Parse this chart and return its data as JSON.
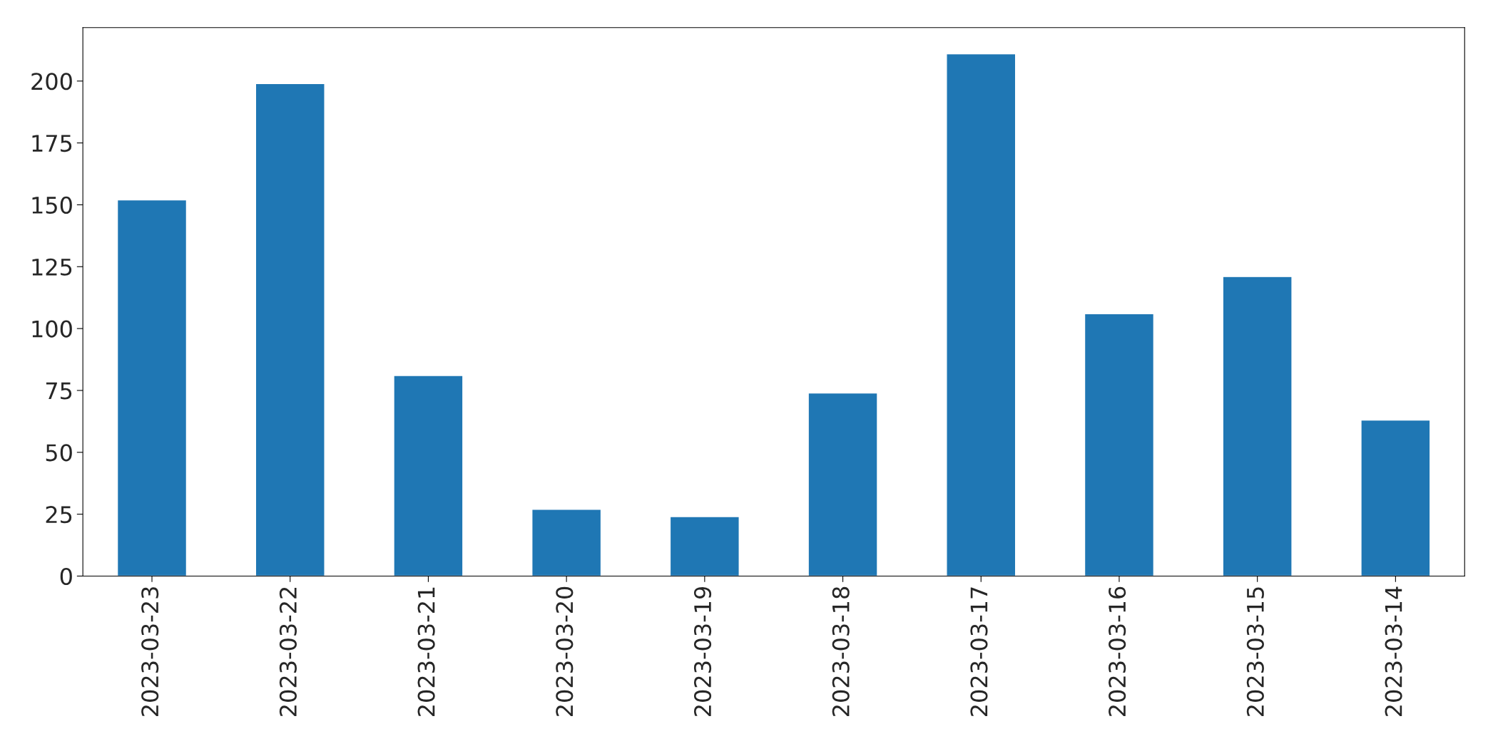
{
  "chart_data": {
    "type": "bar",
    "categories": [
      "2023-03-23",
      "2023-03-22",
      "2023-03-21",
      "2023-03-20",
      "2023-03-19",
      "2023-03-18",
      "2023-03-17",
      "2023-03-16",
      "2023-03-15",
      "2023-03-14"
    ],
    "values": [
      152,
      199,
      81,
      27,
      24,
      74,
      211,
      106,
      121,
      63
    ],
    "color": "#1f77b4",
    "ylim": [
      0,
      221.6
    ],
    "yticks": [
      0,
      25,
      50,
      75,
      100,
      125,
      150,
      175,
      200
    ],
    "grid": false
  }
}
